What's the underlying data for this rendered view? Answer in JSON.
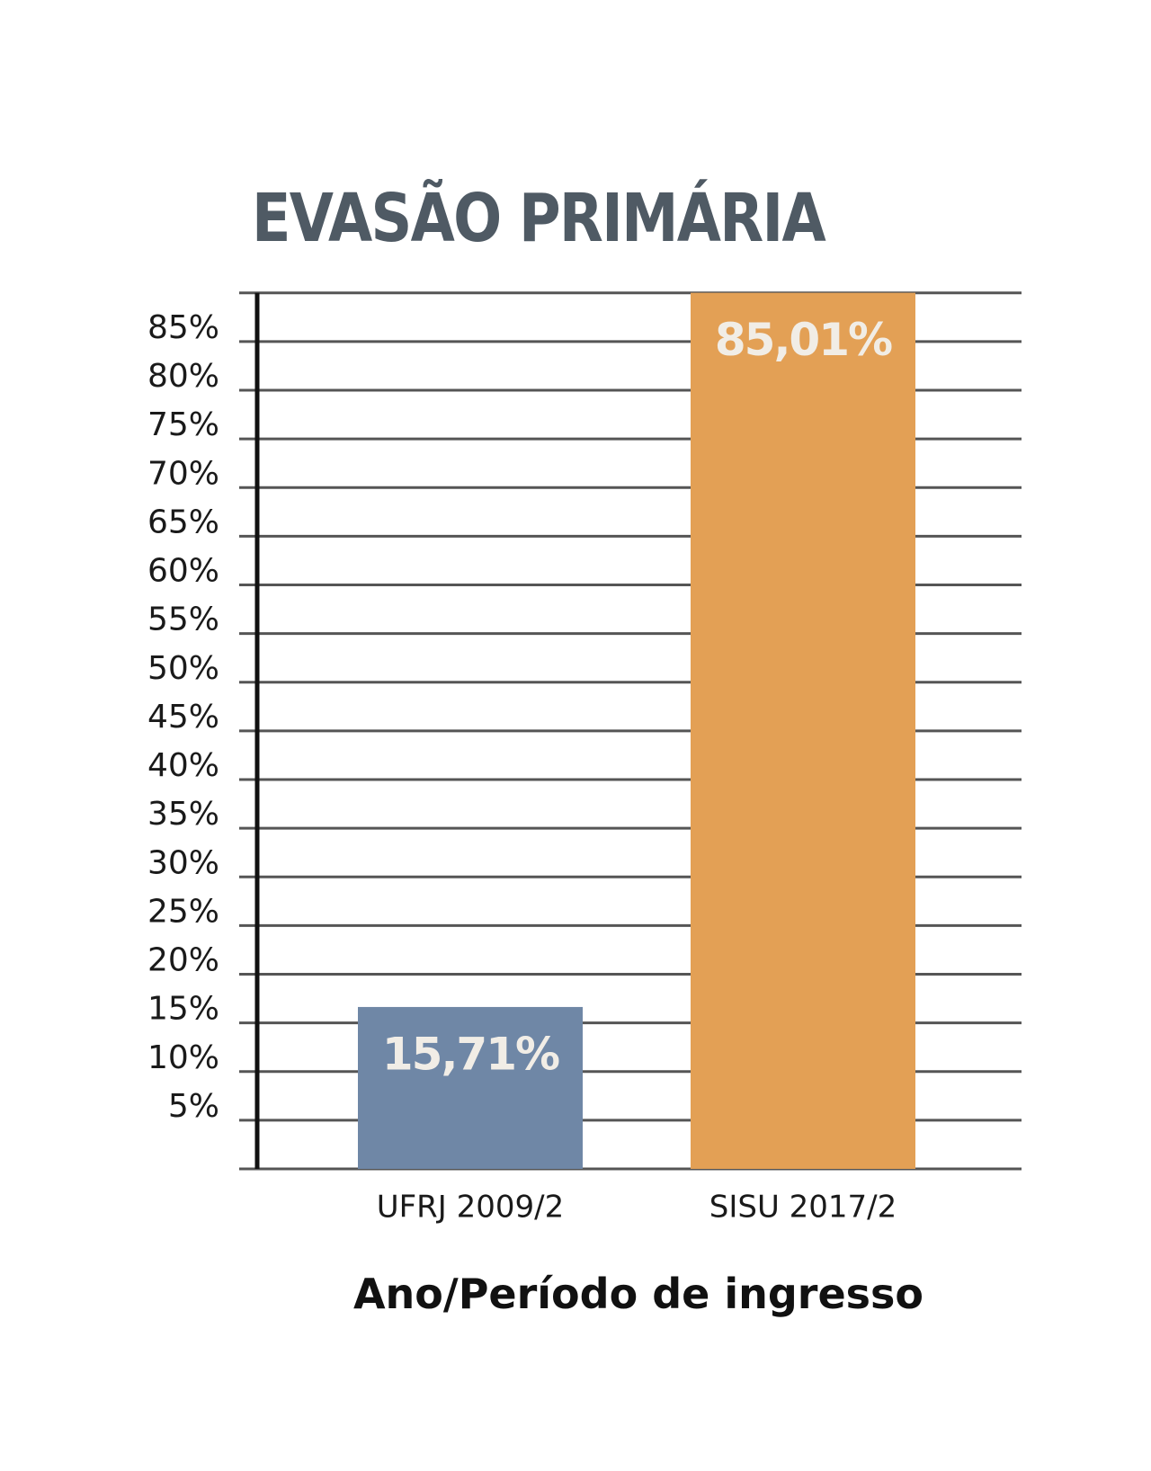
{
  "chart_data": {
    "type": "bar",
    "title": "EVASÃO PRIMÁRIA",
    "xlabel": "Ano/Período de ingresso",
    "ylabel": "",
    "categories": [
      "UFRJ 2009/2",
      "SISU  2017/2"
    ],
    "values": [
      15.71,
      85.01
    ],
    "value_labels": [
      "15,71%",
      "85,01%"
    ],
    "bar_colors": [
      "#6f87a6",
      "#e3a055"
    ],
    "ylim": [
      0,
      85
    ],
    "y_ticks": [
      5,
      10,
      15,
      20,
      25,
      30,
      35,
      40,
      45,
      50,
      55,
      60,
      65,
      70,
      75,
      80,
      85
    ],
    "y_tick_labels": [
      "5%",
      "10%",
      "15%",
      "20%",
      "25%",
      "30%",
      "35%",
      "40%",
      "45%",
      "50%",
      "55%",
      "60%",
      "65%",
      "70%",
      "75%",
      "80%",
      "85%"
    ],
    "grid": true,
    "legend": "none",
    "colors": {
      "title": "#4f5a64",
      "grid": "#555555",
      "axis": "#111111",
      "bar_label": "#f1ede6"
    }
  }
}
